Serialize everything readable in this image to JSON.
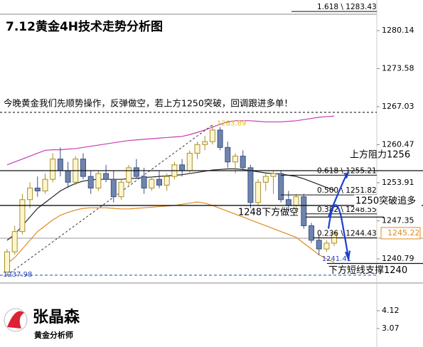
{
  "chart_data": {
    "type": "candlestick",
    "title": "7.12黄金4H技术走势分析图",
    "note": "今晚黄金我们先顺势操作，反弹做空，若上方1250突破，回调跟进多单！",
    "ylim": [
      1237.0,
      1285.41
    ],
    "yticks": [
      1280.14,
      1273.58,
      1267.03,
      1260.47,
      1253.91,
      1247.35,
      1240.79
    ],
    "lower_ylim": [
      1.98,
      5.46
    ],
    "lower_yticks": [
      4.12,
      3.07
    ],
    "up_color": "#fdf6d0",
    "up_edge": "#a8902a",
    "down_color": "#6f84ad",
    "down_edge": "#3c5285",
    "candles": {
      "open": [
        1238.5,
        1242,
        1245.5,
        1251,
        1253,
        1252.5,
        1254.5,
        1258,
        1256,
        1254,
        1258,
        1255,
        1253,
        1255.5,
        1254.5,
        1251.5,
        1254,
        1256.5,
        1255,
        1253,
        1254.5,
        1253.5,
        1255,
        1257,
        1256,
        1259,
        1260.5,
        1261,
        1263,
        1260,
        1257.5,
        1258.5,
        1256.5,
        1250.5,
        1254,
        1255,
        1255.5,
        1251,
        1250,
        1251.5,
        1246.5,
        1244,
        1242.5,
        1243.5
      ],
      "high": [
        1242.5,
        1246.5,
        1252,
        1254,
        1255,
        1255.5,
        1259,
        1260,
        1257.5,
        1258.5,
        1259,
        1256,
        1256,
        1257,
        1256,
        1254.5,
        1257,
        1258,
        1256.5,
        1255,
        1256,
        1255.5,
        1257.5,
        1258,
        1259.5,
        1261,
        1262,
        1263.89,
        1263.5,
        1261,
        1259,
        1259.5,
        1257,
        1254.5,
        1255.5,
        1256,
        1256,
        1252.5,
        1252,
        1252,
        1247,
        1245,
        1244,
        1245.5
      ],
      "low": [
        1237.98,
        1241.5,
        1245,
        1249.5,
        1251.5,
        1252,
        1254,
        1255,
        1253,
        1253.5,
        1254.5,
        1252,
        1252.5,
        1254,
        1250.5,
        1251,
        1253.5,
        1254.5,
        1252,
        1252.5,
        1253,
        1252.5,
        1254.5,
        1255,
        1255.5,
        1258,
        1259.5,
        1260.5,
        1259.5,
        1256.5,
        1255.5,
        1256,
        1249.5,
        1250,
        1252.5,
        1252,
        1250.5,
        1249,
        1248.5,
        1246,
        1243.5,
        1241.41,
        1242,
        1243
      ],
      "close": [
        1242,
        1245.5,
        1251,
        1253,
        1252.5,
        1254.5,
        1258,
        1256,
        1254,
        1258,
        1255,
        1253,
        1255.5,
        1254.5,
        1251.5,
        1254,
        1256.5,
        1255,
        1253,
        1254.5,
        1253.5,
        1255,
        1257,
        1256,
        1259,
        1260.5,
        1261,
        1263,
        1260,
        1257.5,
        1258.5,
        1256.5,
        1250.5,
        1254,
        1255,
        1255.5,
        1251,
        1250,
        1251.5,
        1246.5,
        1244,
        1242.5,
        1243.5,
        1245.22
      ]
    },
    "overlays": [
      {
        "color": "#c83cb4",
        "values": [
          1257,
          1257.5,
          1258,
          1258.5,
          1259,
          1259.5,
          1259.6,
          1259.6,
          1259.7,
          1259.8,
          1260,
          1260.2,
          1260.4,
          1260.6,
          1260.8,
          1261,
          1261.2,
          1261.3,
          1261.4,
          1261.5,
          1261.6,
          1261.7,
          1261.8,
          1261.9,
          1262.2,
          1262.6,
          1263,
          1263.5,
          1264,
          1264.4,
          1264.6,
          1264.6,
          1264.6,
          1264.5,
          1264.4,
          1264.4,
          1264.4,
          1264.5,
          1264.6,
          1264.8,
          1265,
          1265.2,
          1265.3,
          1265.4
        ]
      },
      {
        "color": "#222222",
        "values": [
          1244,
          1245,
          1246.5,
          1248,
          1249.5,
          1250.5,
          1251.5,
          1252.5,
          1253.2,
          1253.8,
          1254.2,
          1254.4,
          1254.5,
          1254.5,
          1254.5,
          1254.5,
          1254.6,
          1254.7,
          1254.8,
          1254.9,
          1255,
          1255.1,
          1255.2,
          1255.3,
          1255.5,
          1255.7,
          1255.9,
          1256.1,
          1256.2,
          1256.3,
          1256.3,
          1256.2,
          1256,
          1255.8,
          1255.6,
          1255.5,
          1255.4,
          1255.2,
          1255,
          1254.6,
          1254.1,
          1253.6,
          1253.1,
          1252.6
        ]
      },
      {
        "color": "#e08a1c",
        "values": [
          1240,
          1241,
          1242.5,
          1244,
          1245.5,
          1246.5,
          1247.5,
          1248.3,
          1248.8,
          1249.2,
          1249.5,
          1249.6,
          1249.6,
          1249.6,
          1249.5,
          1249.4,
          1249.4,
          1249.5,
          1249.6,
          1249.7,
          1249.8,
          1249.9,
          1250,
          1250.2,
          1250.4,
          1250.6,
          1250.4,
          1250,
          1249.5,
          1249,
          1248.5,
          1248,
          1247.5,
          1247,
          1246.5,
          1246,
          1245.5,
          1245,
          1244.5,
          1243.5,
          1242.5,
          1241.5,
          1240.8,
          1240.2
        ]
      }
    ],
    "fibonacci": [
      {
        "value": 1283.43,
        "label": "1.618 \\ 1283.43"
      },
      {
        "value": 1255.21,
        "label": "0.618 \\ 1255.21"
      },
      {
        "value": 1251.82,
        "label": "0.500 \\ 1251.82"
      },
      {
        "value": 1248.55,
        "label": "0.382 \\ 1248.55"
      },
      {
        "value": 1244.43,
        "label": "0.236 \\ 1244.43"
      }
    ],
    "annotations": [
      {
        "value": 1256,
        "text": "上方阻力1256"
      },
      {
        "value": 1250,
        "text": "1250突破追多"
      },
      {
        "value": 1248,
        "text": "1248下方做空"
      },
      {
        "value": 1240,
        "text": "下方短线支撑1240"
      }
    ]
  },
  "logo": {
    "name": "张晶森",
    "subtitle": "黄金分析师"
  }
}
